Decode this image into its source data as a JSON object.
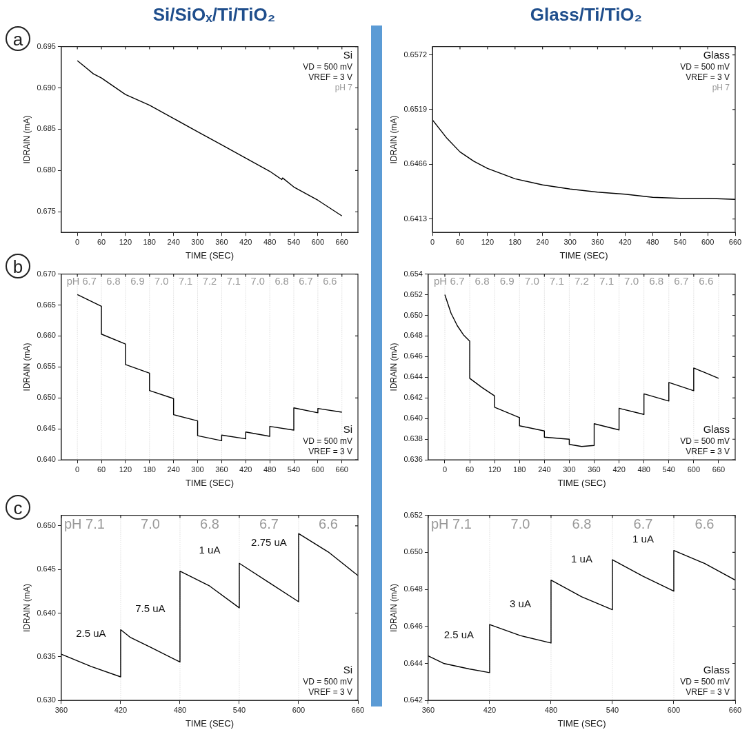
{
  "chart_data": [
    {
      "type": "line",
      "title": "Si/SiOₓ/Ti/TiO₂",
      "subtitle": "a",
      "xlabel": "TIME (SEC)",
      "ylabel": "IDRAIN (mA)",
      "color": "#000000",
      "marker": "none",
      "legend": false,
      "grid": false,
      "x": [
        0,
        20,
        40,
        60,
        120,
        180,
        240,
        300,
        360,
        420,
        480,
        510,
        512,
        540,
        600,
        660
      ],
      "values": [
        0.6933,
        0.6925,
        0.6917,
        0.6912,
        0.6892,
        0.6879,
        0.6863,
        0.6847,
        0.6831,
        0.6815,
        0.6799,
        0.6789,
        0.6791,
        0.678,
        0.6764,
        0.6745
      ],
      "xlim": [
        -40,
        700
      ],
      "xticks": [
        0,
        60,
        120,
        180,
        240,
        300,
        360,
        420,
        480,
        540,
        600,
        660
      ],
      "ylim": [
        0.6725,
        0.695
      ],
      "yticks": [
        0.675,
        {
          "value": 0.68,
          "label": "0.680"
        },
        0.685,
        {
          "value": 0.69,
          "label": "0.690"
        },
        0.695
      ],
      "annotations": [
        "Si",
        "VD = 500 mV",
        "VREF = 3 V",
        "pH 7"
      ]
    },
    {
      "type": "line",
      "title": "Glass/Ti/TiO₂",
      "xlabel": "TIME (SEC)",
      "ylabel": "IDRAIN (mA)",
      "color": "#000000",
      "marker": "none",
      "legend": false,
      "grid": false,
      "x": [
        0,
        30,
        60,
        90,
        120,
        180,
        240,
        300,
        360,
        420,
        480,
        540,
        600,
        660
      ],
      "values": [
        0.6509,
        0.6492,
        0.6478,
        0.6469,
        0.6462,
        0.6452,
        0.6446,
        0.6442,
        0.6439,
        0.6437,
        0.6434,
        0.6433,
        0.6433,
        0.6432
      ],
      "xlim": [
        0,
        660
      ],
      "xticks": [
        0,
        60,
        120,
        180,
        240,
        300,
        360,
        420,
        480,
        540,
        600,
        660
      ],
      "ylim": [
        0.64,
        0.658
      ],
      "yticks": [
        0.6413,
        0.6466,
        0.6519,
        0.6572
      ],
      "annotations": [
        "Glass",
        "VD = 500 mV",
        "VREF = 3 V",
        "pH 7"
      ]
    },
    {
      "type": "line",
      "subtitle": "b",
      "xlabel": "TIME (SEC)",
      "ylabel": "IDRAIN (mA)",
      "color": "#000000",
      "marker": "none",
      "legend": false,
      "grid": false,
      "x": [
        0,
        60,
        60,
        120,
        120,
        180,
        180,
        240,
        240,
        300,
        300,
        360,
        360,
        420,
        420,
        480,
        480,
        540,
        540,
        600,
        600,
        660
      ],
      "values": [
        0.6667,
        0.6648,
        0.6603,
        0.6587,
        0.6554,
        0.654,
        0.6512,
        0.6499,
        0.6473,
        0.6463,
        0.6439,
        0.6431,
        0.644,
        0.6434,
        0.6445,
        0.6438,
        0.6454,
        0.6448,
        0.6484,
        0.6476,
        0.6483,
        0.6477
      ],
      "xlim": [
        -40,
        700
      ],
      "xticks": [
        0,
        60,
        120,
        180,
        240,
        300,
        360,
        420,
        480,
        540,
        600,
        660
      ],
      "ylim": [
        0.64,
        0.67
      ],
      "yticks": [
        {
          "value": 0.64,
          "label": "0.640"
        },
        0.645,
        {
          "value": 0.65,
          "label": "0.650"
        },
        0.655,
        {
          "value": 0.66,
          "label": "0.660"
        },
        0.665,
        {
          "value": 0.67,
          "label": "0.670"
        }
      ],
      "ref_lines": [
        {
          "axis": "x",
          "value": 0,
          "color": "#cccccc",
          "line_style": "dotted"
        },
        {
          "axis": "x",
          "value": 60,
          "color": "#cccccc",
          "line_style": "dotted"
        },
        {
          "axis": "x",
          "value": 120,
          "color": "#cccccc",
          "line_style": "dotted"
        },
        {
          "axis": "x",
          "value": 180,
          "color": "#cccccc",
          "line_style": "dotted"
        },
        {
          "axis": "x",
          "value": 240,
          "color": "#cccccc",
          "line_style": "dotted"
        },
        {
          "axis": "x",
          "value": 300,
          "color": "#cccccc",
          "line_style": "dotted"
        },
        {
          "axis": "x",
          "value": 360,
          "color": "#cccccc",
          "line_style": "dotted"
        },
        {
          "axis": "x",
          "value": 420,
          "color": "#cccccc",
          "line_style": "dotted"
        },
        {
          "axis": "x",
          "value": 480,
          "color": "#cccccc",
          "line_style": "dotted"
        },
        {
          "axis": "x",
          "value": 540,
          "color": "#cccccc",
          "line_style": "dotted"
        },
        {
          "axis": "x",
          "value": 600,
          "color": "#cccccc",
          "line_style": "dotted"
        },
        {
          "axis": "x",
          "value": 660,
          "color": "#cccccc",
          "line_style": "dotted"
        }
      ],
      "bands": [
        {
          "axis": "x",
          "from": 0,
          "to": 60,
          "label": "pH 6.7",
          "color": "#ffffff"
        },
        {
          "axis": "x",
          "from": 60,
          "to": 120,
          "label": "6.8",
          "color": "#ffffff"
        },
        {
          "axis": "x",
          "from": 120,
          "to": 180,
          "label": "6.9",
          "color": "#ffffff"
        },
        {
          "axis": "x",
          "from": 180,
          "to": 240,
          "label": "7.0",
          "color": "#ffffff"
        },
        {
          "axis": "x",
          "from": 240,
          "to": 300,
          "label": "7.1",
          "color": "#ffffff"
        },
        {
          "axis": "x",
          "from": 300,
          "to": 360,
          "label": "7.2",
          "color": "#ffffff"
        },
        {
          "axis": "x",
          "from": 360,
          "to": 420,
          "label": "7.1",
          "color": "#ffffff"
        },
        {
          "axis": "x",
          "from": 420,
          "to": 480,
          "label": "7.0",
          "color": "#ffffff"
        },
        {
          "axis": "x",
          "from": 480,
          "to": 540,
          "label": "6.8",
          "color": "#ffffff"
        },
        {
          "axis": "x",
          "from": 540,
          "to": 600,
          "label": "6.7",
          "color": "#ffffff"
        },
        {
          "axis": "x",
          "from": 600,
          "to": 660,
          "label": "6.6",
          "color": "#ffffff"
        }
      ],
      "annotations": [
        "Si",
        "VD = 500 mV",
        "VREF = 3 V"
      ]
    },
    {
      "type": "line",
      "xlabel": "TIME (SEC)",
      "ylabel": "IDRAIN (mA)",
      "color": "#000000",
      "marker": "none",
      "legend": false,
      "grid": false,
      "x": [
        0,
        15,
        30,
        45,
        60,
        60,
        90,
        120,
        120,
        180,
        180,
        240,
        240,
        300,
        300,
        330,
        360,
        360,
        420,
        420,
        480,
        480,
        540,
        540,
        600,
        600,
        660
      ],
      "values": [
        0.652,
        0.6502,
        0.649,
        0.6481,
        0.6475,
        0.6439,
        0.643,
        0.6422,
        0.6411,
        0.6401,
        0.6393,
        0.6388,
        0.6382,
        0.638,
        0.6375,
        0.6373,
        0.6374,
        0.6395,
        0.6389,
        0.641,
        0.6404,
        0.6424,
        0.6417,
        0.6435,
        0.6427,
        0.6449,
        0.6439
      ],
      "xlim": [
        -40,
        700
      ],
      "xticks": [
        0,
        60,
        120,
        180,
        240,
        300,
        360,
        420,
        480,
        540,
        600,
        660
      ],
      "ylim": [
        0.636,
        0.654
      ],
      "yticks": [
        0.636,
        0.638,
        {
          "value": 0.64,
          "label": "0.640"
        },
        0.642,
        0.644,
        0.646,
        0.648,
        {
          "value": 0.65,
          "label": "0.650"
        },
        0.652,
        0.654
      ],
      "ref_lines": [
        {
          "axis": "x",
          "value": 0,
          "color": "#cccccc",
          "line_style": "dotted"
        },
        {
          "axis": "x",
          "value": 60,
          "color": "#cccccc",
          "line_style": "dotted"
        },
        {
          "axis": "x",
          "value": 120,
          "color": "#cccccc",
          "line_style": "dotted"
        },
        {
          "axis": "x",
          "value": 180,
          "color": "#cccccc",
          "line_style": "dotted"
        },
        {
          "axis": "x",
          "value": 240,
          "color": "#cccccc",
          "line_style": "dotted"
        },
        {
          "axis": "x",
          "value": 300,
          "color": "#cccccc",
          "line_style": "dotted"
        },
        {
          "axis": "x",
          "value": 360,
          "color": "#cccccc",
          "line_style": "dotted"
        },
        {
          "axis": "x",
          "value": 420,
          "color": "#cccccc",
          "line_style": "dotted"
        },
        {
          "axis": "x",
          "value": 480,
          "color": "#cccccc",
          "line_style": "dotted"
        },
        {
          "axis": "x",
          "value": 540,
          "color": "#cccccc",
          "line_style": "dotted"
        },
        {
          "axis": "x",
          "value": 600,
          "color": "#cccccc",
          "line_style": "dotted"
        },
        {
          "axis": "x",
          "value": 660,
          "color": "#cccccc",
          "line_style": "dotted"
        }
      ],
      "bands": [
        {
          "axis": "x",
          "from": 0,
          "to": 60,
          "label": "pH 6.7",
          "color": "#ffffff"
        },
        {
          "axis": "x",
          "from": 60,
          "to": 120,
          "label": "6.8",
          "color": "#ffffff"
        },
        {
          "axis": "x",
          "from": 120,
          "to": 180,
          "label": "6.9",
          "color": "#ffffff"
        },
        {
          "axis": "x",
          "from": 180,
          "to": 240,
          "label": "7.0",
          "color": "#ffffff"
        },
        {
          "axis": "x",
          "from": 240,
          "to": 300,
          "label": "7.1",
          "color": "#ffffff"
        },
        {
          "axis": "x",
          "from": 300,
          "to": 360,
          "label": "7.2",
          "color": "#ffffff"
        },
        {
          "axis": "x",
          "from": 360,
          "to": 420,
          "label": "7.1",
          "color": "#ffffff"
        },
        {
          "axis": "x",
          "from": 420,
          "to": 480,
          "label": "7.0",
          "color": "#ffffff"
        },
        {
          "axis": "x",
          "from": 480,
          "to": 540,
          "label": "6.8",
          "color": "#ffffff"
        },
        {
          "axis": "x",
          "from": 540,
          "to": 600,
          "label": "6.7",
          "color": "#ffffff"
        },
        {
          "axis": "x",
          "from": 600,
          "to": 660,
          "label": "6.6",
          "color": "#ffffff"
        }
      ],
      "annotations": [
        "Glass",
        "VD = 500 mV",
        "VREF = 3 V"
      ]
    },
    {
      "type": "line",
      "subtitle": "c",
      "xlabel": "TIME (SEC)",
      "ylabel": "IDRAIN (mA)",
      "color": "#000000",
      "marker": "none",
      "legend": false,
      "grid": false,
      "x": [
        360,
        390,
        420,
        420,
        430,
        450,
        480,
        480,
        510,
        540,
        540,
        570,
        600,
        600,
        630,
        660
      ],
      "values": [
        0.6353,
        0.6339,
        0.6327,
        0.6381,
        0.6372,
        0.6361,
        0.6344,
        0.6448,
        0.6431,
        0.6406,
        0.6457,
        0.6435,
        0.6413,
        0.6491,
        0.647,
        0.6443
      ],
      "xlim": [
        360,
        660
      ],
      "xticks": [
        360,
        420,
        480,
        540,
        600,
        660
      ],
      "ylim": [
        0.63,
        0.6512
      ],
      "yticks": [
        {
          "value": 0.63,
          "label": "0.630"
        },
        0.635,
        {
          "value": 0.64,
          "label": "0.640"
        },
        0.645,
        {
          "value": 0.65,
          "label": "0.650"
        }
      ],
      "ref_lines": [
        {
          "axis": "x",
          "value": 420,
          "color": "#cccccc",
          "line_style": "dotted"
        },
        {
          "axis": "x",
          "value": 480,
          "color": "#cccccc",
          "line_style": "dotted"
        },
        {
          "axis": "x",
          "value": 540,
          "color": "#cccccc",
          "line_style": "dotted"
        },
        {
          "axis": "x",
          "value": 600,
          "color": "#cccccc",
          "line_style": "dotted"
        }
      ],
      "bands": [
        {
          "axis": "x",
          "from": 360,
          "to": 420,
          "label": "pH 7.1",
          "color": "#ffffff"
        },
        {
          "axis": "x",
          "from": 420,
          "to": 480,
          "label": "7.0",
          "color": "#ffffff"
        },
        {
          "axis": "x",
          "from": 480,
          "to": 540,
          "label": "6.8",
          "color": "#ffffff"
        },
        {
          "axis": "x",
          "from": 540,
          "to": 600,
          "label": "6.7",
          "color": "#ffffff"
        },
        {
          "axis": "x",
          "from": 600,
          "to": 660,
          "label": "6.6",
          "color": "#ffffff"
        }
      ],
      "annotations": [
        "Si",
        "VD = 500 mV",
        "VREF = 3 V",
        "2.5 uA",
        "7.5 uA",
        "1 uA",
        "2.75 uA"
      ]
    },
    {
      "type": "line",
      "xlabel": "TIME (SEC)",
      "ylabel": "IDRAIN (mA)",
      "color": "#000000",
      "marker": "none",
      "legend": false,
      "grid": false,
      "x": [
        360,
        375,
        400,
        420,
        420,
        450,
        480,
        480,
        510,
        540,
        540,
        570,
        600,
        600,
        630,
        660
      ],
      "values": [
        0.6444,
        0.644,
        0.6437,
        0.6435,
        0.6461,
        0.6455,
        0.6451,
        0.6485,
        0.6476,
        0.6469,
        0.6496,
        0.6487,
        0.6479,
        0.6501,
        0.6494,
        0.6485
      ],
      "xlim": [
        360,
        660
      ],
      "xticks": [
        360,
        420,
        480,
        540,
        600,
        660
      ],
      "ylim": [
        0.642,
        0.652
      ],
      "yticks": [
        0.642,
        0.644,
        0.646,
        0.648,
        {
          "value": 0.65,
          "label": "0.650"
        },
        0.652
      ],
      "ref_lines": [
        {
          "axis": "x",
          "value": 420,
          "color": "#cccccc",
          "line_style": "dotted"
        },
        {
          "axis": "x",
          "value": 480,
          "color": "#cccccc",
          "line_style": "dotted"
        },
        {
          "axis": "x",
          "value": 540,
          "color": "#cccccc",
          "line_style": "dotted"
        },
        {
          "axis": "x",
          "value": 600,
          "color": "#cccccc",
          "line_style": "dotted"
        }
      ],
      "bands": [
        {
          "axis": "x",
          "from": 360,
          "to": 420,
          "label": "pH 7.1",
          "color": "#ffffff"
        },
        {
          "axis": "x",
          "from": 420,
          "to": 480,
          "label": "7.0",
          "color": "#ffffff"
        },
        {
          "axis": "x",
          "from": 480,
          "to": 540,
          "label": "6.8",
          "color": "#ffffff"
        },
        {
          "axis": "x",
          "from": 540,
          "to": 600,
          "label": "6.7",
          "color": "#ffffff"
        },
        {
          "axis": "x",
          "from": 600,
          "to": 660,
          "label": "6.6",
          "color": "#ffffff"
        }
      ],
      "annotations": [
        "Glass",
        "VD = 500 mV",
        "VREF = 3 V",
        "2.5 uA",
        "3 uA",
        "1 uA",
        "1 uA"
      ]
    }
  ]
}
